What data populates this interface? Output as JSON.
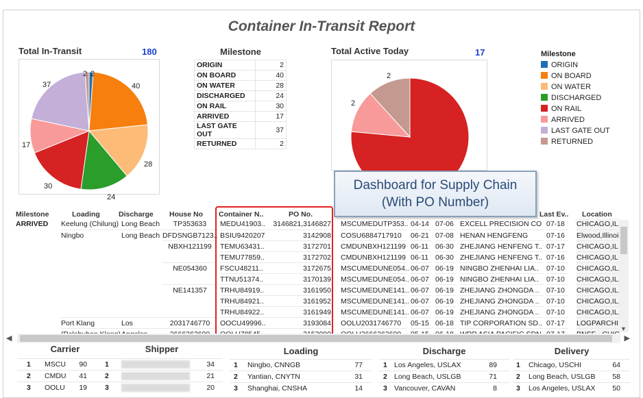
{
  "report": {
    "title": "Container In-Transit Report"
  },
  "total_in_transit": {
    "label": "Total In-Transit",
    "total": "180",
    "pie_labels": [
      "2",
      "2",
      "40",
      "28",
      "24",
      "30",
      "17",
      "37"
    ]
  },
  "milestone": {
    "title": "Milestone",
    "rows": [
      {
        "label": "ORIGIN",
        "value": "2"
      },
      {
        "label": "ON BOARD",
        "value": "40"
      },
      {
        "label": "ON WATER",
        "value": "28"
      },
      {
        "label": "DISCHARGED",
        "value": "24"
      },
      {
        "label": "ON RAIL",
        "value": "30"
      },
      {
        "label": "ARRIVED",
        "value": "17"
      },
      {
        "label": "LAST GATE OUT",
        "value": "37"
      },
      {
        "label": "RETURNED",
        "value": "2"
      }
    ]
  },
  "total_active": {
    "label": "Total Active Today",
    "total": "17",
    "pie_labels": [
      "2",
      "2"
    ]
  },
  "legend": {
    "title": "Milestone",
    "items": [
      {
        "label": "ORIGIN",
        "color": "#1f6fb4"
      },
      {
        "label": "ON BOARD",
        "color": "#f77f0e"
      },
      {
        "label": "ON WATER",
        "color": "#fdbb78"
      },
      {
        "label": "DISCHARGED",
        "color": "#2a9d2a"
      },
      {
        "label": "ON RAIL",
        "color": "#d62222"
      },
      {
        "label": "ARRIVED",
        "color": "#f99a9a"
      },
      {
        "label": "LAST GATE OUT",
        "color": "#c3afd8"
      },
      {
        "label": "RETURNED",
        "color": "#c49990"
      }
    ]
  },
  "callout": {
    "line1": "Dashboard for Supply Chain",
    "line2": "(With PO Number)"
  },
  "grid": {
    "headers": {
      "milestone": "Milestone",
      "loading": "Loading",
      "discharge": "Discharge",
      "house": "House No",
      "container": "Container N..",
      "po": "PO No.",
      "last_event": "Last Ev..",
      "location": "Location"
    },
    "rows": [
      {
        "milestone": "ARRIVED",
        "loading": "Keelung (Chilung)",
        "discharge": "Long Beach",
        "house": "TP353633",
        "container": "MEDU41903..",
        "po": "3146821,3146827",
        "bl": "MSCUMEDUTP353..",
        "d1": "04-14",
        "d2": "07-06",
        "shipper": "EXCELL PRECISION CO",
        "last": "07-18",
        "loc": "CHICAGO,IL,..."
      },
      {
        "milestone": "",
        "loading": "Ningbo",
        "discharge": "Long Beach",
        "house": "DFDSNGB7123..",
        "container": "BSIU9420207",
        "po": "3142908",
        "bl": "COSU6884717910",
        "d1": "06-21",
        "d2": "07-08",
        "shipper": "HENAN HENGFENG",
        "last": "07-16",
        "loc": "Elwood,Illinois."
      },
      {
        "milestone": "",
        "loading": "",
        "discharge": "",
        "house": "NBXH121199",
        "container": "TEMU63431..",
        "po": "3172701",
        "bl": "CMDUNBXH121199",
        "d1": "06-11",
        "d2": "06-30",
        "shipper": "ZHEJIANG HENFENG T..",
        "last": "07-17",
        "loc": "CHICAGO,IL"
      },
      {
        "milestone": "",
        "loading": "",
        "discharge": "",
        "house": "",
        "container": "TEMU77859..",
        "po": "3172702",
        "bl": "CMDUNBXH121199",
        "d1": "06-11",
        "d2": "06-30",
        "shipper": "ZHEJIANG HENFENG T..",
        "last": "07-16",
        "loc": "CHICAGO,IL"
      },
      {
        "milestone": "",
        "loading": "",
        "discharge": "",
        "house": "NE054360",
        "container": "FSCU48211..",
        "po": "3172675",
        "bl": "MSCUMEDUNE054..",
        "d1": "06-07",
        "d2": "06-19",
        "shipper": "NINGBO ZHENHAI LIA..",
        "last": "07-10",
        "loc": "CHICAGO,IL,..."
      },
      {
        "milestone": "",
        "loading": "",
        "discharge": "",
        "house": "",
        "container": "TTNU51374..",
        "po": "3170139",
        "bl": "MSCUMEDUNE054..",
        "d1": "06-07",
        "d2": "06-19",
        "shipper": "NINGBO ZHENHAI LIA..",
        "last": "07-10",
        "loc": "CHICAGO,IL,..."
      },
      {
        "milestone": "",
        "loading": "",
        "discharge": "",
        "house": "NE141357",
        "container": "TRHU84919..",
        "po": "3161950",
        "bl": "MSCUMEDUNE141..",
        "d1": "06-07",
        "d2": "06-19",
        "shipper": "ZHEJIANG  ZHONGDA ..",
        "last": "07-10",
        "loc": "CHICAGO,IL,..."
      },
      {
        "milestone": "",
        "loading": "",
        "discharge": "",
        "house": "",
        "container": "TRHU84921..",
        "po": "3161952",
        "bl": "MSCUMEDUNE141..",
        "d1": "06-07",
        "d2": "06-19",
        "shipper": "ZHEJIANG  ZHONGDA ..",
        "last": "07-10",
        "loc": "CHICAGO,IL,..."
      },
      {
        "milestone": "",
        "loading": "",
        "discharge": "",
        "house": "",
        "container": "TRHU84922..",
        "po": "3161949",
        "bl": "MSCUMEDUNE141..",
        "d1": "06-07",
        "d2": "06-19",
        "shipper": "ZHEJIANG  ZHONGDA ..",
        "last": "07-10",
        "loc": "CHICAGO,IL,..."
      },
      {
        "milestone": "",
        "loading": "Port Klang",
        "discharge": "Los",
        "house": "2031746770",
        "container": "OOCU49996..",
        "po": "3193084",
        "bl": "OOLU2031746770",
        "d1": "05-15",
        "d2": "06-18",
        "shipper": "TIP CORPORATION SD..",
        "last": "07-17",
        "loc": "LOGPARCHI,..."
      },
      {
        "milestone": "",
        "loading": "(Pelabuhan Klang)",
        "discharge": "Angeles",
        "house": "2666262600",
        "container": "OOLU78545",
        "po": "3153990",
        "bl": "OOLU2666262600",
        "d1": "05-15",
        "d2": "06-18",
        "shipper": "WRP ASIA PACIFIC SDN",
        "last": "07-17",
        "loc": "BNSF - CHIC"
      }
    ]
  },
  "carrier": {
    "title": "Carrier",
    "rows": [
      {
        "rank": "1",
        "name": "MSCU",
        "count": "90"
      },
      {
        "rank": "2",
        "name": "CMDU",
        "count": "41"
      },
      {
        "rank": "3",
        "name": "OOLU",
        "count": "19"
      }
    ]
  },
  "shipper": {
    "title": "Shipper",
    "rows": [
      {
        "rank": "1",
        "count": "34"
      },
      {
        "rank": "2",
        "count": "21"
      },
      {
        "rank": "3",
        "count": "20"
      }
    ]
  },
  "loading": {
    "title": "Loading",
    "rows": [
      {
        "rank": "1",
        "name": "Ningbo, CNNGB",
        "count": "77"
      },
      {
        "rank": "2",
        "name": "Yantian, CNYTN",
        "count": "31"
      },
      {
        "rank": "3",
        "name": "Shanghai, CNSHA",
        "count": "14"
      }
    ]
  },
  "discharge": {
    "title": "Discharge",
    "rows": [
      {
        "rank": "1",
        "name": "Los Angeles, USLAX",
        "count": "89"
      },
      {
        "rank": "2",
        "name": "Long Beach, USLGB",
        "count": "71"
      },
      {
        "rank": "3",
        "name": "Vancouver, CAVAN",
        "count": "8"
      }
    ]
  },
  "delivery": {
    "title": "Delivery",
    "rows": [
      {
        "rank": "1",
        "name": "Chicago, USCHI",
        "count": "64"
      },
      {
        "rank": "2",
        "name": "Long Beach, USLGB",
        "count": "58"
      },
      {
        "rank": "3",
        "name": "Los Angeles, USLAX",
        "count": "50"
      }
    ]
  },
  "chart_data": [
    {
      "type": "pie",
      "title": "Total In-Transit",
      "categories": [
        "ORIGIN",
        "ON BOARD",
        "ON WATER",
        "DISCHARGED",
        "ON RAIL",
        "ARRIVED",
        "LAST GATE OUT",
        "RETURNED"
      ],
      "values": [
        2,
        40,
        28,
        24,
        30,
        17,
        37,
        2
      ]
    },
    {
      "type": "pie",
      "title": "Total Active Today",
      "categories": [
        "ON RAIL",
        "ARRIVED",
        "RETURNED"
      ],
      "values": [
        13,
        2,
        2
      ]
    }
  ]
}
